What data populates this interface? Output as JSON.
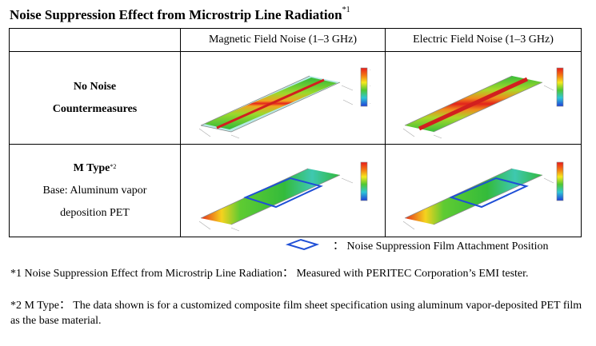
{
  "title": "Noise Suppression Effect from Microstrip Line Radiation",
  "title_ref": "*1",
  "table": {
    "col_headers": [
      "Magnetic Field Noise (1–3 GHz)",
      "Electric Field Noise (1–3 GHz)"
    ],
    "rows": [
      {
        "label_line1": "No Noise",
        "label_line2": "Countermeasures"
      },
      {
        "label_main": "M Type",
        "label_ref": "*2",
        "label_line2": "Base: Aluminum vapor",
        "label_line3": "deposition PET"
      }
    ]
  },
  "legend": {
    "icon": "blue-rhombus-outline",
    "text": "： Noise Suppression Film Attachment Position"
  },
  "notes": [
    "*1 Noise Suppression Effect from Microstrip Line Radiation： Measured with PERITEC Corporation’s EMI tester.",
    "*2 M Type： The data shown is for a customized composite film sheet specification using aluminum vapor-deposited PET film as the base material."
  ],
  "colors": {
    "film_outline": "#1f4fd6",
    "heat_high": "#e8201c",
    "heat_low": "#1a3fd8",
    "heat_mid": "#35c03a"
  }
}
